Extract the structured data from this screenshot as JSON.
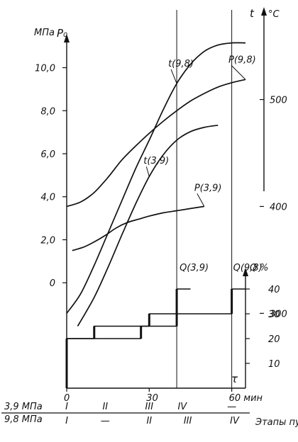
{
  "chart_data": {
    "type": "line",
    "x_unit": "мин",
    "x_symbol": "τ",
    "x_range": [
      0,
      65
    ],
    "x_ticks": [
      {
        "value": 0,
        "label": "0"
      },
      {
        "value": 30,
        "label": "30"
      },
      {
        "value": 60,
        "label": "60 мин"
      }
    ],
    "pressure_axis": {
      "unit": "МПа",
      "symbol": "P₀",
      "range": [
        -4.9,
        11.5
      ],
      "ticks": [
        {
          "value": 0,
          "label": "0"
        },
        {
          "value": 2,
          "label": "2,0"
        },
        {
          "value": 4,
          "label": "4,0"
        },
        {
          "value": 6,
          "label": "6,0"
        },
        {
          "value": 8,
          "label": "8,0"
        },
        {
          "value": 10,
          "label": "10,0"
        }
      ]
    },
    "temperature_axis": {
      "unit": "°C",
      "symbol": "t",
      "range": [
        230,
        560
      ],
      "ticks": [
        {
          "value": 300,
          "label": "300"
        },
        {
          "value": 400,
          "label": "400"
        },
        {
          "value": 500,
          "label": "500"
        }
      ]
    },
    "load_axis": {
      "unit": "%",
      "symbol": "Q",
      "range": [
        0,
        48
      ],
      "ticks": [
        {
          "value": 10,
          "label": "10"
        },
        {
          "value": 20,
          "label": "20"
        },
        {
          "value": 30,
          "label": "30"
        },
        {
          "value": 40,
          "label": "40"
        }
      ]
    },
    "series": [
      {
        "name": "t(9,8)",
        "axis": "temperature",
        "x": [
          0,
          5,
          10,
          15,
          20,
          25,
          30,
          35,
          40,
          45,
          50,
          55,
          60,
          65
        ],
        "y": [
          300,
          318,
          345,
          375,
          405,
          435,
          462,
          490,
          515,
          533,
          545,
          551,
          553,
          553
        ]
      },
      {
        "name": "t(3,9)",
        "axis": "temperature",
        "x": [
          4,
          10,
          15,
          20,
          25,
          30,
          35,
          40,
          45,
          50,
          55
        ],
        "y": [
          288,
          315,
          343,
          373,
          402,
          428,
          448,
          462,
          470,
          474,
          476
        ]
      },
      {
        "name": "P(9,8)",
        "axis": "pressure",
        "x": [
          0,
          5,
          10,
          15,
          20,
          25,
          30,
          35,
          40,
          45,
          50,
          55,
          60,
          65
        ],
        "y": [
          3.55,
          3.75,
          4.2,
          4.9,
          5.7,
          6.35,
          6.95,
          7.5,
          8.0,
          8.45,
          8.8,
          9.1,
          9.3,
          9.45
        ]
      },
      {
        "name": "P(3,9)",
        "axis": "pressure",
        "x": [
          2,
          6,
          10,
          14,
          18,
          22,
          26,
          30,
          35,
          40,
          45,
          50
        ],
        "y": [
          1.5,
          1.65,
          1.9,
          2.2,
          2.55,
          2.8,
          2.95,
          3.1,
          3.25,
          3.35,
          3.45,
          3.55
        ]
      },
      {
        "name": "Q(3,9)",
        "axis": "load",
        "step": true,
        "x": [
          0,
          0,
          10,
          10,
          30,
          30,
          40,
          40,
          45
        ],
        "y": [
          0,
          20,
          20,
          25,
          25,
          30,
          30,
          40,
          40
        ]
      },
      {
        "name": "Q(9,8)",
        "axis": "load",
        "step": true,
        "x": [
          0,
          0,
          27,
          27,
          40,
          40,
          60,
          60,
          65
        ],
        "y": [
          0,
          20,
          20,
          25,
          25,
          30,
          30,
          40,
          40
        ]
      }
    ],
    "vlines": [
      40,
      60
    ],
    "stages_caption": "Этапы пуска",
    "stage_rows": [
      {
        "label": "3,9 МПа",
        "marks": [
          {
            "x": 0,
            "text": "I"
          },
          {
            "x": 14,
            "text": "II"
          },
          {
            "x": 30,
            "text": "III"
          },
          {
            "x": 42,
            "text": "IV"
          },
          {
            "x": 60,
            "text": "—"
          }
        ]
      },
      {
        "label": "9,8 МПа",
        "marks": [
          {
            "x": 0,
            "text": "I"
          },
          {
            "x": 14,
            "text": "—"
          },
          {
            "x": 30,
            "text": "II"
          },
          {
            "x": 44,
            "text": "III"
          },
          {
            "x": 61,
            "text": "IV"
          }
        ]
      }
    ],
    "series_labels": [
      {
        "series": "t(9,8)",
        "text": "t(9,8)"
      },
      {
        "series": "t(3,9)",
        "text": "t(3,9)"
      },
      {
        "series": "P(9,8)",
        "text": "P(9,8)"
      },
      {
        "series": "P(3,9)",
        "text": "P(3,9)"
      },
      {
        "series": "Q(3,9)",
        "text": "Q(3,9)"
      },
      {
        "series": "Q(9,8)",
        "text": "Q(9,8)"
      }
    ]
  }
}
